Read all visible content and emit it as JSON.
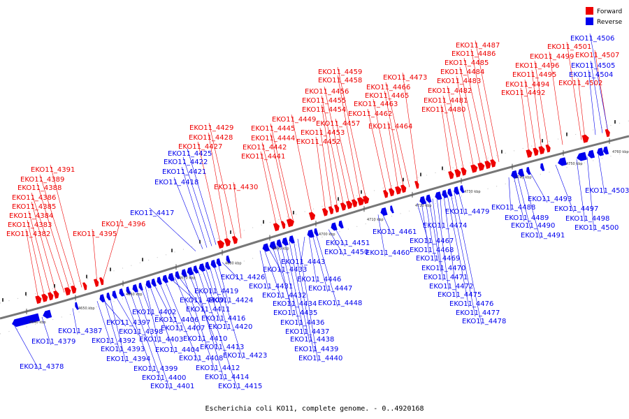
{
  "caption": "Escherichia coli KO11, complete genome. - 0..4920168",
  "legend": [
    {
      "label": "Forward",
      "color": "#ee0000"
    },
    {
      "label": "Reverse",
      "color": "#0000ee"
    }
  ],
  "colors": {
    "forward": "#ee0000",
    "reverse": "#0000ee",
    "backbone": "#777777"
  },
  "ticks": [
    "4640 kbp",
    "4650 kbp",
    "4660 kbp",
    "4670 kbp",
    "4680 kbp",
    "4690 kbp",
    "4700 kbp",
    "4710 kbp",
    "4720 kbp",
    "4730 kbp",
    "4740 kbp",
    "4750 kbp",
    "4760 kbp"
  ],
  "forward_genes": [
    "EKO11_4382",
    "EKO11_4383",
    "EKO11_4384",
    "EKO11_4385",
    "EKO11_4386",
    "EKO11_4388",
    "EKO11_4389",
    "EKO11_4391",
    "EKO11_4395",
    "EKO11_4396",
    "EKO11_4427",
    "EKO11_4428",
    "EKO11_4429",
    "EKO11_4430",
    "EKO11_4441",
    "EKO11_4442",
    "EKO11_4444",
    "EKO11_4445",
    "EKO11_4449",
    "EKO11_4452",
    "EKO11_4453",
    "EKO11_4454",
    "EKO11_4455",
    "EKO11_4456",
    "EKO11_4457",
    "EKO11_4458",
    "EKO11_4459",
    "EKO11_4462",
    "EKO11_4463",
    "EKO11_4464",
    "EKO11_4465",
    "EKO11_4466",
    "EKO11_4473",
    "EKO11_4480",
    "EKO11_4481",
    "EKO11_4482",
    "EKO11_4483",
    "EKO11_4484",
    "EKO11_4485",
    "EKO11_4486",
    "EKO11_4487",
    "EKO11_4492",
    "EKO11_4494",
    "EKO11_4495",
    "EKO11_4496",
    "EKO11_4499",
    "EKO11_4501",
    "EKO11_4502",
    "EKO11_4507"
  ],
  "reverse_genes_upper": [
    "EKO11_4417",
    "EKO11_4418",
    "EKO11_4421",
    "EKO11_4422",
    "EKO11_4425",
    "EKO11_4506",
    "EKO11_4505",
    "EKO11_4504"
  ],
  "reverse_genes_lower": [
    "EKO11_4378",
    "EKO11_4379",
    "EKO11_4387",
    "EKO11_4392",
    "EKO11_4393",
    "EKO11_4394",
    "EKO11_4397",
    "EKO11_4398",
    "EKO11_4399",
    "EKO11_4400",
    "EKO11_4401",
    "EKO11_4402",
    "EKO11_4403",
    "EKO11_4404",
    "EKO11_4406",
    "EKO11_4407",
    "EKO11_4408",
    "EKO11_4409",
    "EKO11_4410",
    "EKO11_4411",
    "EKO11_4412",
    "EKO11_4413",
    "EKO11_4414",
    "EKO11_4415",
    "EKO11_4416",
    "EKO11_4419",
    "EKO11_4420",
    "EKO11_4423",
    "EKO11_4424",
    "EKO11_4426",
    "EKO11_4431",
    "EKO11_4432",
    "EKO11_4433",
    "EKO11_4434",
    "EKO11_4435",
    "EKO11_4436",
    "EKO11_4437",
    "EKO11_4438",
    "EKO11_4439",
    "EKO11_4440",
    "EKO11_4443",
    "EKO11_4446",
    "EKO11_4447",
    "EKO11_4448",
    "EKO11_4450",
    "EKO11_4451",
    "EKO11_4460",
    "EKO11_4461",
    "EKO11_4467",
    "EKO11_4468",
    "EKO11_4469",
    "EKO11_4470",
    "EKO11_4471",
    "EKO11_4472",
    "EKO11_4474",
    "EKO11_4475",
    "EKO11_4476",
    "EKO11_4477",
    "EKO11_4478",
    "EKO11_4479",
    "EKO11_4488",
    "EKO11_4489",
    "EKO11_4490",
    "EKO11_4491",
    "EKO11_4493",
    "EKO11_4497",
    "EKO11_4498",
    "EKO11_4500",
    "EKO11_4503"
  ]
}
